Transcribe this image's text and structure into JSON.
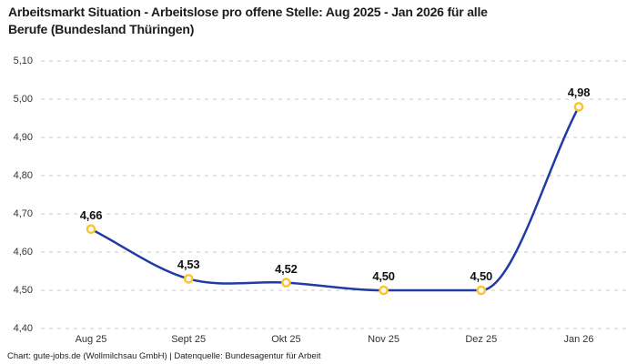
{
  "header": {
    "title_lines": [
      "Arbeitsmarkt Situation - Arbeitslose pro offene Stelle: Aug 2025 - Jan 2026 für alle",
      "Berufe (Bundesland Thüringen)"
    ]
  },
  "footer": {
    "credit": "Chart: gute-jobs.de (Wollmilchsau GmbH) | Datenquelle: Bundesagentur für Arbeit"
  },
  "chart_data": {
    "type": "line",
    "title": "Arbeitsmarkt Situation - Arbeitslose pro offene Stelle: Aug 2025 - Jan 2026 für alle Berufe (Bundesland Thüringen)",
    "categories": [
      "Aug 25",
      "Sept 25",
      "Okt 25",
      "Nov 25",
      "Dez 25",
      "Jan 26"
    ],
    "values": [
      4.66,
      4.53,
      4.52,
      4.5,
      4.5,
      4.98
    ],
    "point_labels": [
      "4,66",
      "4,53",
      "4,52",
      "4,50",
      "4,50",
      "4,98"
    ],
    "y_tick_labels": [
      "5,10",
      "5,00",
      "4,90",
      "4,80",
      "4,70",
      "4,60",
      "4,50",
      "4,40"
    ],
    "y_tick_values": [
      5.1,
      5.0,
      4.9,
      4.8,
      4.7,
      4.6,
      4.5,
      4.4
    ],
    "ylim": [
      4.4,
      5.1
    ],
    "xlabel": "",
    "ylabel": "",
    "legend": "none",
    "grid": "horizontal-dashed",
    "decimal_style": "comma",
    "colors": {
      "line": "#1f3ca6",
      "marker_stroke": "#fdc32b",
      "marker_fill": "#ffffff",
      "grid": "#c8c8c8",
      "title_text": "#1c1c1c",
      "axis_text": "#333333"
    }
  }
}
